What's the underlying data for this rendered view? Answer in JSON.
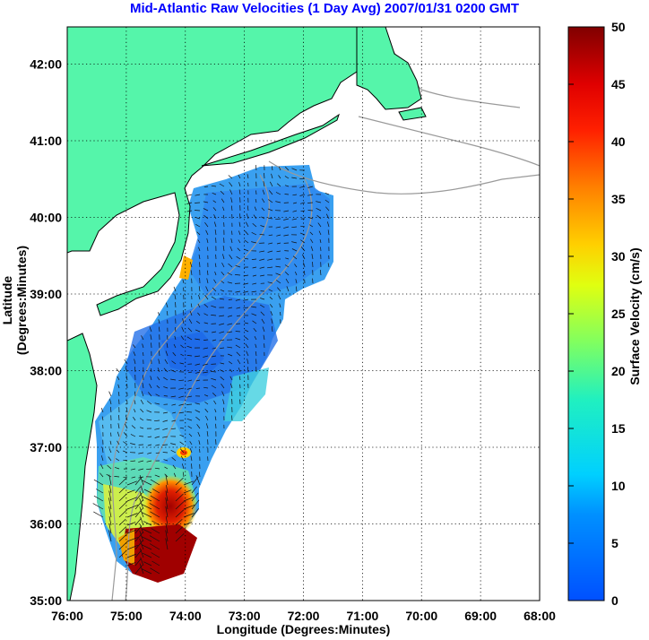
{
  "title": "Mid-Atlantic Raw Velocities (1 Day Avg) 2007/01/31 0200 GMT",
  "title_color": "#0000ff",
  "axes": {
    "xlabel": "Longitude (Degrees:Minutes)",
    "ylabel": "Latitude (Degrees:Minutes)",
    "x_ticks": [
      "76:00",
      "75:00",
      "74:00",
      "73:00",
      "72:00",
      "71:00",
      "70:00",
      "69:00",
      "68:00"
    ],
    "y_ticks": [
      "42:00",
      "41:00",
      "40:00",
      "39:00",
      "38:00",
      "37:00",
      "36:00",
      "35:00"
    ],
    "grid": "dotted"
  },
  "colorbar": {
    "label": "Surface Velocity (cm/s)",
    "min": 0,
    "max": 50,
    "ticks": [
      "0",
      "5",
      "10",
      "15",
      "20",
      "25",
      "30",
      "35",
      "40",
      "45",
      "50"
    ],
    "colormap": "jet"
  },
  "colors": {
    "land": "#55f5aa",
    "coast": "#000000",
    "bathymetry": "#9a9a9a"
  }
}
